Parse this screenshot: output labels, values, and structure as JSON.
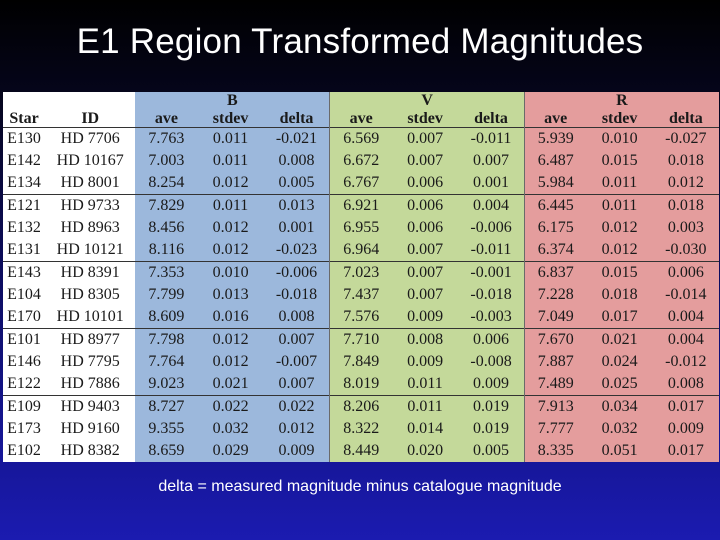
{
  "title": "E1 Region Transformed Magnitudes",
  "caption": "delta = measured magnitude minus catalogue magnitude",
  "table": {
    "bands": [
      "B",
      "V",
      "R"
    ],
    "headers": [
      "Star",
      "ID",
      "ave",
      "stdev",
      "delta",
      "ave",
      "stdev",
      "delta",
      "ave",
      "stdev",
      "delta"
    ],
    "rows": [
      [
        "E130",
        "HD 7706",
        "7.763",
        "0.011",
        "-0.021",
        "6.569",
        "0.007",
        "-0.011",
        "5.939",
        "0.010",
        "-0.027"
      ],
      [
        "E142",
        "HD 10167",
        "7.003",
        "0.011",
        "0.008",
        "6.672",
        "0.007",
        "0.007",
        "6.487",
        "0.015",
        "0.018"
      ],
      [
        "E134",
        "HD 8001",
        "8.254",
        "0.012",
        "0.005",
        "6.767",
        "0.006",
        "0.001",
        "5.984",
        "0.011",
        "0.012"
      ],
      [
        "E121",
        "HD 9733",
        "7.829",
        "0.011",
        "0.013",
        "6.921",
        "0.006",
        "0.004",
        "6.445",
        "0.011",
        "0.018"
      ],
      [
        "E132",
        "HD 8963",
        "8.456",
        "0.012",
        "0.001",
        "6.955",
        "0.006",
        "-0.006",
        "6.175",
        "0.012",
        "0.003"
      ],
      [
        "E131",
        "HD 10121",
        "8.116",
        "0.012",
        "-0.023",
        "6.964",
        "0.007",
        "-0.011",
        "6.374",
        "0.012",
        "-0.030"
      ],
      [
        "E143",
        "HD 8391",
        "7.353",
        "0.010",
        "-0.006",
        "7.023",
        "0.007",
        "-0.001",
        "6.837",
        "0.015",
        "0.006"
      ],
      [
        "E104",
        "HD 8305",
        "7.799",
        "0.013",
        "-0.018",
        "7.437",
        "0.007",
        "-0.018",
        "7.228",
        "0.018",
        "-0.014"
      ],
      [
        "E170",
        "HD 10101",
        "8.609",
        "0.016",
        "0.008",
        "7.576",
        "0.009",
        "-0.003",
        "7.049",
        "0.017",
        "0.004"
      ],
      [
        "E101",
        "HD 8977",
        "7.798",
        "0.012",
        "0.007",
        "7.710",
        "0.008",
        "0.006",
        "7.670",
        "0.021",
        "0.004"
      ],
      [
        "E146",
        "HD 7795",
        "7.764",
        "0.012",
        "-0.007",
        "7.849",
        "0.009",
        "-0.008",
        "7.887",
        "0.024",
        "-0.012"
      ],
      [
        "E122",
        "HD 7886",
        "9.023",
        "0.021",
        "0.007",
        "8.019",
        "0.011",
        "0.009",
        "7.489",
        "0.025",
        "0.008"
      ],
      [
        "E109",
        "HD 9403",
        "8.727",
        "0.022",
        "0.022",
        "8.206",
        "0.011",
        "0.019",
        "7.913",
        "0.034",
        "0.017"
      ],
      [
        "E173",
        "HD 9160",
        "9.355",
        "0.032",
        "0.012",
        "8.322",
        "0.014",
        "0.019",
        "7.777",
        "0.032",
        "0.009"
      ],
      [
        "E102",
        "HD 8382",
        "8.659",
        "0.029",
        "0.009",
        "8.449",
        "0.020",
        "0.005",
        "8.335",
        "0.051",
        "0.017"
      ]
    ]
  }
}
